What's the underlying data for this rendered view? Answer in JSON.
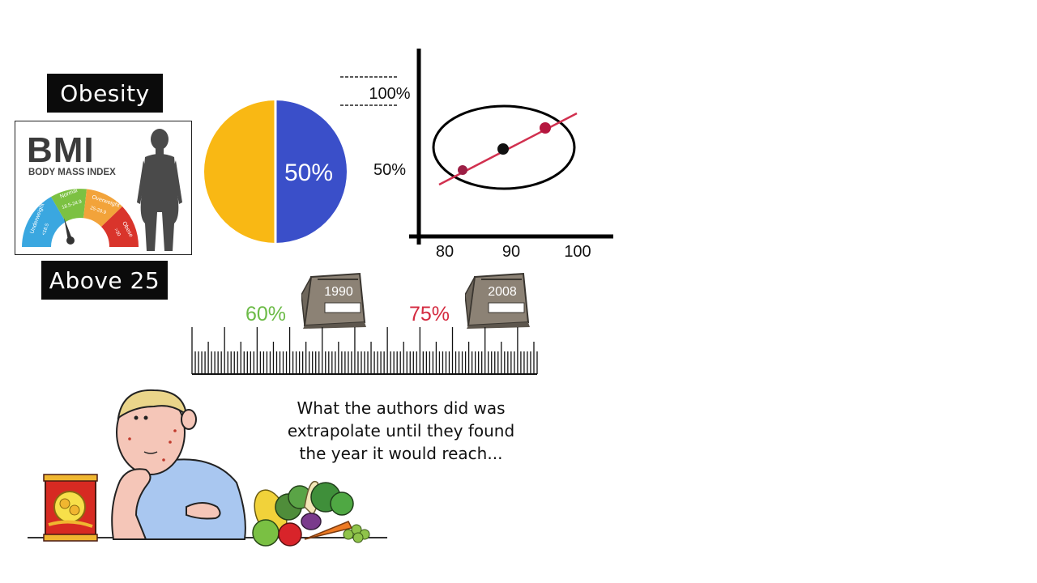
{
  "labels": {
    "top": "Obesity",
    "bottom": "Above 25"
  },
  "bmi_card": {
    "title": "BMI",
    "subtitle": "BODY MASS INDEX",
    "gauge_segments": [
      {
        "name": "Underweight",
        "range": "<18.5",
        "color": "#3aa7e0"
      },
      {
        "name": "Normal",
        "range": "18.5-24.9",
        "color": "#7cc142"
      },
      {
        "name": "Overweight",
        "range": "25-29.9",
        "color": "#f2a33a"
      },
      {
        "name": "Obese",
        "range": ">30",
        "color": "#d9342b"
      }
    ]
  },
  "pie": {
    "value_label": "50%",
    "fraction": 0.5,
    "left_color": "#f9b814",
    "right_color": "#3a4fc9"
  },
  "scatter": {
    "y_ticks": [
      "100%",
      "50%"
    ],
    "x_ticks": [
      "80",
      "90",
      "100"
    ],
    "line_color": "#d1304f",
    "point_colors": [
      "#9c1f45",
      "#111111",
      "#b5173f"
    ]
  },
  "timeline": {
    "first_pct": "60%",
    "first_pct_color": "#6cbb47",
    "first_year": "1990",
    "second_pct": "75%",
    "second_pct_color": "#d42a3f",
    "second_year": "2008"
  },
  "caption": {
    "line1": "What the authors did was",
    "line2": "extrapolate until they found",
    "line3": "the year it would reach..."
  }
}
